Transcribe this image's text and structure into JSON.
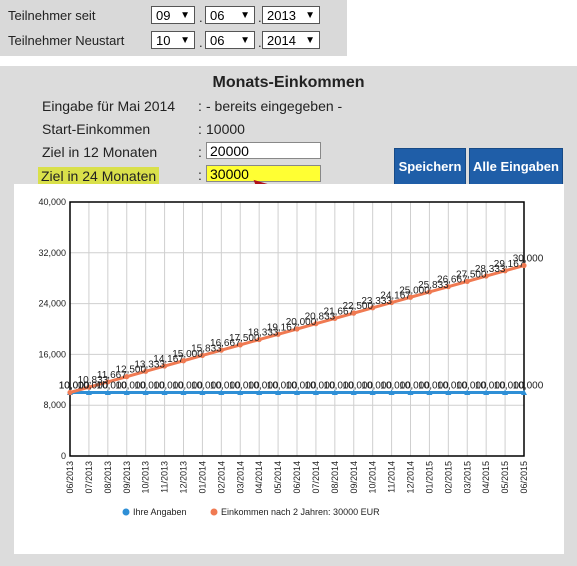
{
  "top": {
    "row1": {
      "label": "Teilnehmer seit",
      "month": "09",
      "day": "06",
      "year": "2013"
    },
    "row2": {
      "label": "Teilnehmer Neustart",
      "month": "10",
      "day": "06",
      "year": "2014"
    },
    "separator": "."
  },
  "form": {
    "heading": "Monats-Einkommen",
    "colon": ":",
    "eingabe_label": "Eingabe für Mai 2014",
    "eingabe_value": "- bereits eingegeben -",
    "start_label": "Start-Einkommen",
    "start_value": "10000",
    "ziel12_label": "Ziel in 12 Monaten",
    "ziel12_value": "20000",
    "ziel24_label": "Ziel in 24 Monaten",
    "ziel24_value": "30000",
    "save_button": "Speichern",
    "all_button": "Alle Eingaben"
  },
  "colors": {
    "highlight_label": "#d9e04a",
    "highlight_input": "#ffff33",
    "button": "#1f5ea8",
    "series_blue": "#2e8fd6",
    "series_orange": "#f07a52",
    "arrow": "#b0101a"
  },
  "chart_data": {
    "type": "line",
    "categories": [
      "06/2013",
      "07/2013",
      "08/2013",
      "09/2013",
      "10/2013",
      "11/2013",
      "12/2013",
      "01/2014",
      "02/2014",
      "03/2014",
      "04/2014",
      "05/2014",
      "06/2014",
      "07/2014",
      "08/2014",
      "09/2014",
      "10/2014",
      "11/2014",
      "12/2014",
      "01/2015",
      "02/2015",
      "03/2015",
      "04/2015",
      "05/2015",
      "06/2015"
    ],
    "yticks": [
      "0",
      "8,000",
      "16,000",
      "24,000",
      "32,000",
      "40,000"
    ],
    "ylim": [
      0,
      40000
    ],
    "series": [
      {
        "name": "Ihre Angaben",
        "color": "#2e8fd6",
        "values": [
          10000,
          10000,
          10000,
          10000,
          10000,
          10000,
          10000,
          10000,
          10000,
          10000,
          10000,
          10000,
          10000,
          10000,
          10000,
          10000,
          10000,
          10000,
          10000,
          10000,
          10000,
          10000,
          10000,
          10000,
          10000
        ],
        "labels": [
          "10,000",
          "10,000",
          "10,000",
          "10,000",
          "10,000",
          "10,000",
          "10,000",
          "10,000",
          "10,000",
          "10,000",
          "10,000",
          "10,000",
          "10,000",
          "10,000",
          "10,000",
          "10,000",
          "10,000",
          "10,000",
          "10,000",
          "10,000",
          "10,000",
          "10,000",
          "10,000",
          "10,000",
          "10,000"
        ]
      },
      {
        "name": "Einkommen nach 2 Jahren: 30000 EUR",
        "color": "#f07a52",
        "values": [
          10000,
          10833,
          11667,
          12500,
          13333,
          14167,
          15000,
          15833,
          16667,
          17500,
          18333,
          19167,
          20000,
          20833,
          21667,
          22500,
          23333,
          24167,
          25000,
          25833,
          26667,
          27500,
          28333,
          29167,
          30000
        ],
        "labels": [
          "10,000",
          "10,833",
          "11,667",
          "12,500",
          "13,333",
          "14,167",
          "15,000",
          "15,833",
          "16,667",
          "17,500",
          "18,333",
          "19,167",
          "20,000",
          "20,833",
          "21,667",
          "22,500",
          "23,333",
          "24,167",
          "25,000",
          "25,833",
          "26,667",
          "27,500",
          "28,333",
          "29,167",
          "30,000"
        ]
      }
    ],
    "grid": true,
    "legend": "bottom"
  }
}
